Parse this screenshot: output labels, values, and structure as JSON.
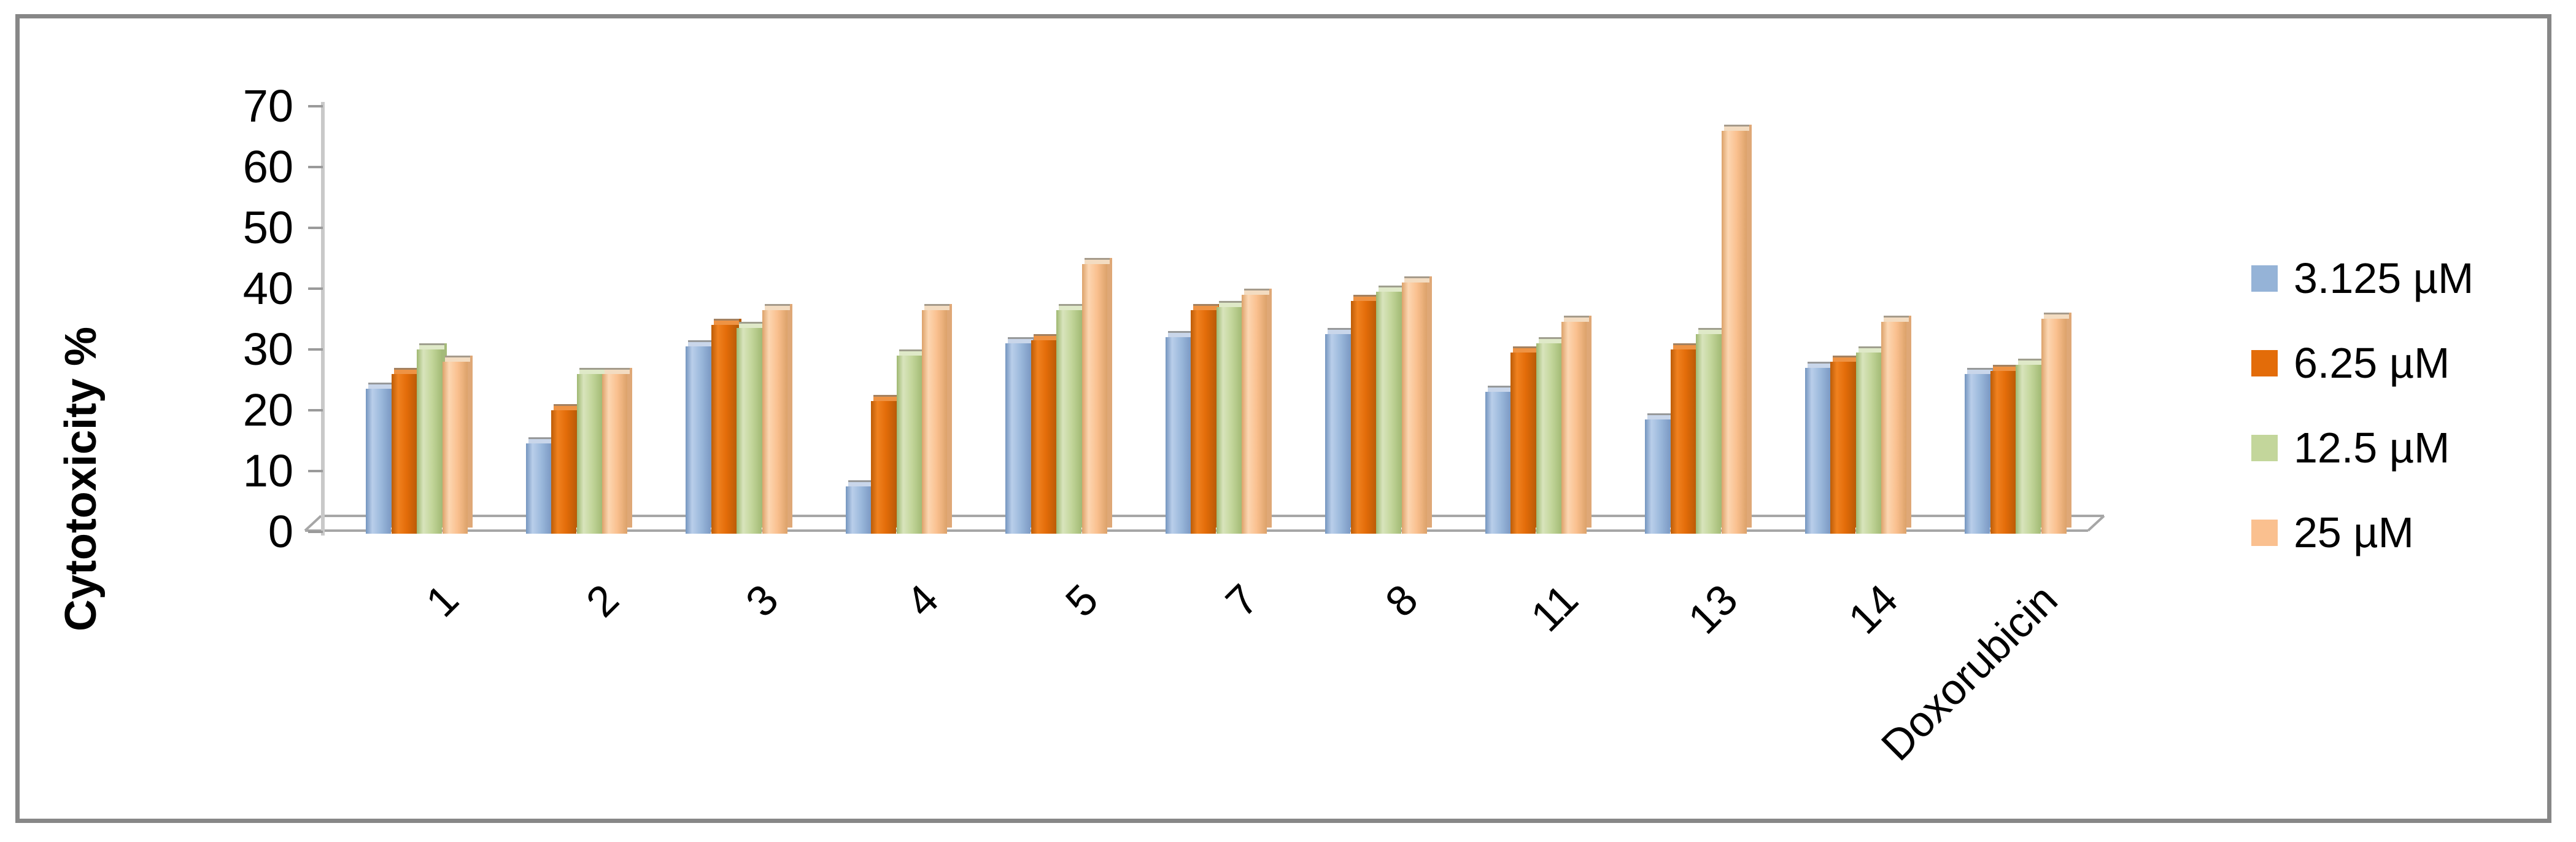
{
  "chart_data": {
    "type": "bar",
    "style": "3d-clustered-column",
    "title": "",
    "xlabel": "",
    "ylabel": "Cytotoxicity %",
    "ylim": [
      0,
      70
    ],
    "yticks": [
      0,
      10,
      20,
      30,
      40,
      50,
      60,
      70
    ],
    "grid": false,
    "legend_position": "right",
    "categories": [
      "1",
      "2",
      "3",
      "4",
      "5",
      "7",
      "8",
      "11",
      "13",
      "14",
      "Doxorubicin"
    ],
    "series": [
      {
        "name": "3.125 µM",
        "color": "#95B3D7",
        "values": [
          23.5,
          14.5,
          30.5,
          7.5,
          31,
          32,
          32.5,
          23,
          18.5,
          27,
          26
        ]
      },
      {
        "name": "6.25 µM",
        "color": "#E36C09",
        "values": [
          26,
          20,
          34,
          21.5,
          31.5,
          36.5,
          38,
          29.5,
          30,
          28,
          26.5
        ]
      },
      {
        "name": "12.5 µM",
        "color": "#C3D69B",
        "values": [
          30,
          26,
          33.5,
          29,
          36.5,
          37,
          39.5,
          31,
          32.5,
          29.5,
          27.5
        ]
      },
      {
        "name": "25 µM",
        "color": "#FAC08F",
        "values": [
          28,
          26,
          36.5,
          36.5,
          44,
          39,
          41,
          34.5,
          66,
          34.5,
          35
        ]
      }
    ]
  }
}
